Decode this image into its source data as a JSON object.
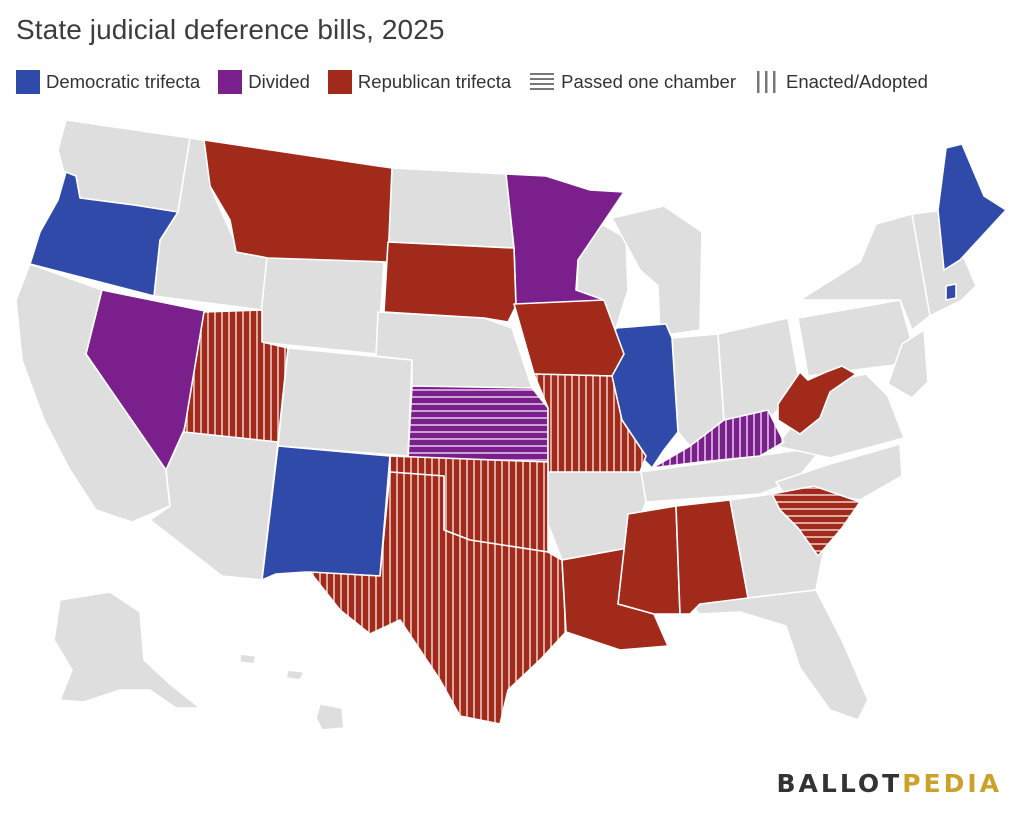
{
  "title": "State judicial deference bills, 2025",
  "colors": {
    "democratic": "#2f4aa8",
    "divided": "#7b1f8c",
    "republican": "#a12a1a",
    "none": "#dedede",
    "border": "#ffffff",
    "stripe": "#e9c9c4",
    "logo_dark": "#333333",
    "logo_accent": "#c9a227"
  },
  "legend": [
    {
      "key": "democratic",
      "label": "Democratic trifecta",
      "icon": "square-swatch"
    },
    {
      "key": "divided",
      "label": "Divided",
      "icon": "square-swatch"
    },
    {
      "key": "republican",
      "label": "Republican trifecta",
      "icon": "square-swatch"
    },
    {
      "key": "passed",
      "label": "Passed one chamber",
      "icon": "horizontal-lines-icon"
    },
    {
      "key": "enacted",
      "label": "Enacted/Adopted",
      "icon": "vertical-lines-icon"
    }
  ],
  "states": [
    {
      "state": "Maine",
      "control": "democratic",
      "status": "none"
    },
    {
      "state": "Rhode Island",
      "control": "democratic",
      "status": "none"
    },
    {
      "state": "Oregon",
      "control": "democratic",
      "status": "none"
    },
    {
      "state": "Illinois",
      "control": "democratic",
      "status": "none"
    },
    {
      "state": "New Mexico",
      "control": "democratic",
      "status": "none"
    },
    {
      "state": "Nevada",
      "control": "divided",
      "status": "none"
    },
    {
      "state": "Minnesota",
      "control": "divided",
      "status": "none"
    },
    {
      "state": "Kansas",
      "control": "divided",
      "status": "passed"
    },
    {
      "state": "Kentucky",
      "control": "divided",
      "status": "enacted"
    },
    {
      "state": "Montana",
      "control": "republican",
      "status": "none"
    },
    {
      "state": "South Dakota",
      "control": "republican",
      "status": "none"
    },
    {
      "state": "Iowa",
      "control": "republican",
      "status": "none"
    },
    {
      "state": "Utah",
      "control": "republican",
      "status": "enacted"
    },
    {
      "state": "Missouri",
      "control": "republican",
      "status": "enacted"
    },
    {
      "state": "Oklahoma",
      "control": "republican",
      "status": "enacted"
    },
    {
      "state": "Texas",
      "control": "republican",
      "status": "enacted"
    },
    {
      "state": "Louisiana",
      "control": "republican",
      "status": "none"
    },
    {
      "state": "Mississippi",
      "control": "republican",
      "status": "none"
    },
    {
      "state": "Alabama",
      "control": "republican",
      "status": "none"
    },
    {
      "state": "West Virginia",
      "control": "republican",
      "status": "none"
    },
    {
      "state": "South Carolina",
      "control": "republican",
      "status": "passed"
    }
  ],
  "logo": {
    "part1": "BALLOT",
    "part2": "PEDIA"
  }
}
